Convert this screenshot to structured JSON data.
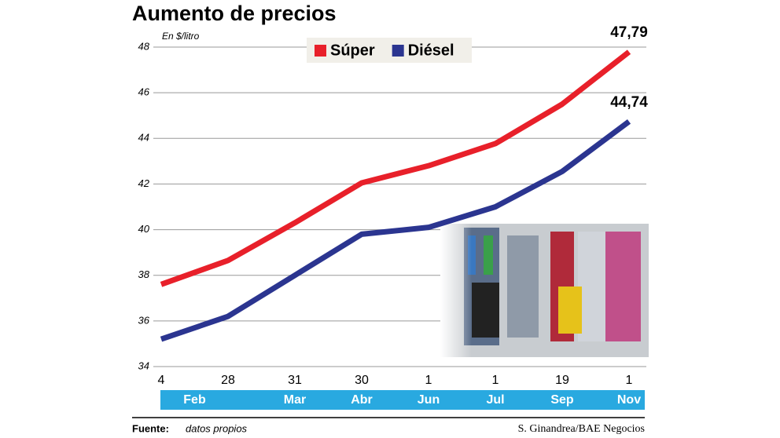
{
  "chart_data": {
    "type": "line",
    "title": "Aumento de precios",
    "y_unit": "En $/litro",
    "categories": [
      "4",
      "28",
      "31",
      "30",
      "1",
      "1",
      "19",
      "1"
    ],
    "category_groups": [
      {
        "name": "Feb",
        "span": 2
      },
      {
        "name": "Mar",
        "span": 1
      },
      {
        "name": "Abr",
        "span": 1
      },
      {
        "name": "Jun",
        "span": 1
      },
      {
        "name": "Jul",
        "span": 1
      },
      {
        "name": "Sep",
        "span": 1
      },
      {
        "name": "Nov",
        "span": 1
      }
    ],
    "series": [
      {
        "name": "Súper",
        "color": "#e8202a",
        "values": [
          37.6,
          38.65,
          40.3,
          42.05,
          42.8,
          43.77,
          45.5,
          47.79
        ],
        "value_labels": [
          null,
          null,
          null,
          null,
          null,
          null,
          null,
          "47,79"
        ]
      },
      {
        "name": "Diésel",
        "color": "#2b3590",
        "values": [
          35.2,
          36.2,
          38.0,
          39.8,
          40.1,
          41.0,
          42.55,
          44.74
        ],
        "value_labels": [
          null,
          null,
          null,
          null,
          null,
          null,
          null,
          "44,74"
        ]
      }
    ],
    "ylim": [
      34,
      48
    ],
    "yticks": [
      34,
      36,
      38,
      40,
      42,
      44,
      46,
      48
    ],
    "grid": true,
    "source_label": "Fuente:",
    "source": "datos propios",
    "credit": "S. Ginandrea/BAE Negocios"
  }
}
